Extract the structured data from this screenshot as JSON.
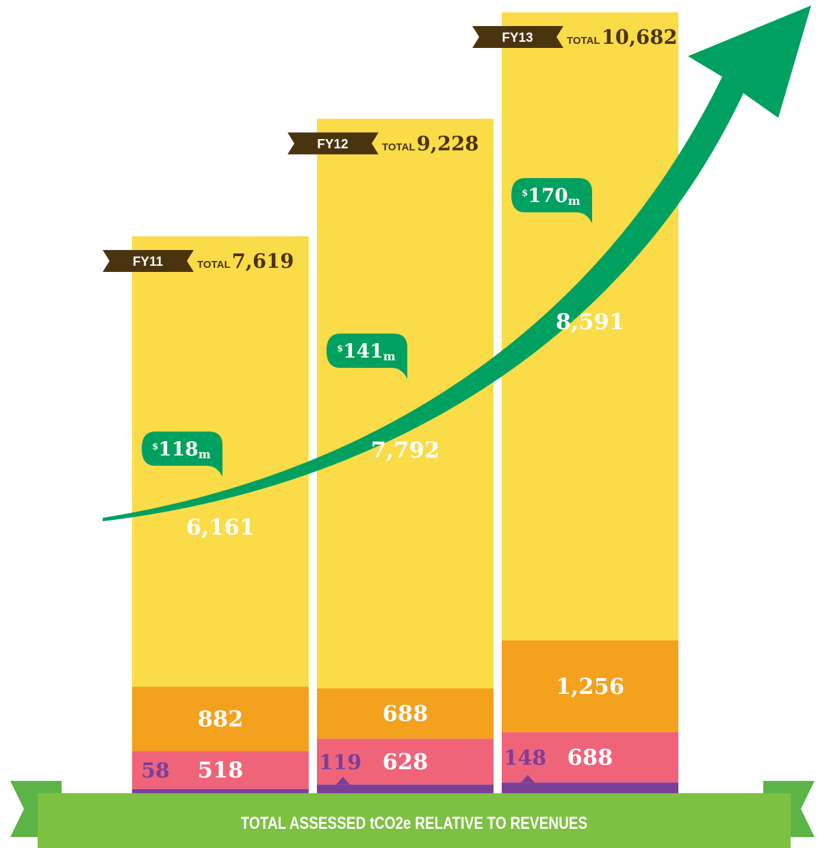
{
  "chart_data": {
    "type": "stacked_bar",
    "title": "TOTAL ASSESSED tCO2e RELATIVE TO REVENUES",
    "categories": [
      "FY11",
      "FY12",
      "FY13"
    ],
    "series": [
      {
        "color": "#7b3f98",
        "values": [
          58,
          119,
          148
        ]
      },
      {
        "color": "#f0647a",
        "values": [
          518,
          628,
          688
        ]
      },
      {
        "color": "#f4a11e",
        "values": [
          882,
          688,
          1256
        ],
        "value_labels": [
          "882",
          "688",
          "1,256"
        ]
      },
      {
        "color": "#f9dc48",
        "values": [
          6161,
          7792,
          8591
        ],
        "value_labels": [
          "6,161",
          "7,792",
          "8,591"
        ]
      }
    ],
    "totals": {
      "label": "TOTAL",
      "values": [
        7619,
        9228,
        10682
      ],
      "value_labels": [
        "7,619",
        "9,228",
        "10,682"
      ]
    },
    "revenue": {
      "currency": "$",
      "unit": "m",
      "values": [
        118,
        141,
        170
      ],
      "color": "#00a060"
    }
  }
}
